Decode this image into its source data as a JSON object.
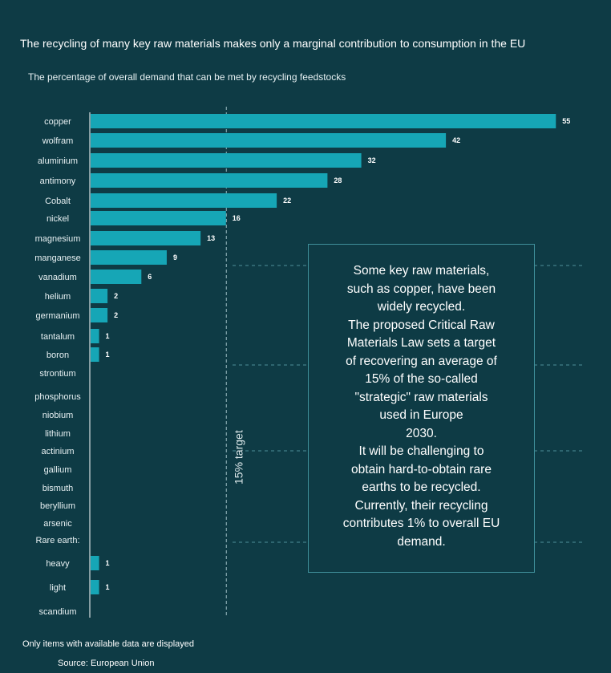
{
  "header": {
    "title": "The recycling of many key raw materials makes only a marginal contribution to consumption in the EU",
    "subtitle": "The percentage of overall demand that can be met by recycling feedstocks"
  },
  "chart_data": {
    "type": "bar",
    "orientation": "horizontal",
    "categories": [
      "copper",
      "wolfram",
      "aluminium",
      "antimony",
      "Cobalt",
      "nickel",
      "magnesium",
      "manganese",
      "vanadium",
      "helium",
      "germanium",
      "tantalum",
      "boron",
      "strontium",
      "phosphorus",
      "niobium",
      "lithium",
      "actinium",
      "gallium",
      "bismuth",
      "beryllium",
      "arsenic",
      "Rare earth:",
      "heavy",
      "light",
      "scandium"
    ],
    "values": [
      55,
      42,
      32,
      28,
      22,
      16,
      13,
      9,
      6,
      2,
      2,
      1,
      1,
      null,
      null,
      null,
      null,
      null,
      null,
      null,
      null,
      null,
      null,
      1,
      1,
      null
    ],
    "value_labels": [
      "55",
      "42",
      "32",
      "28",
      "22",
      "16",
      "13",
      "9",
      "6",
      "2",
      "2",
      "1",
      "1",
      "",
      "",
      "",
      "",
      "",
      "",
      "",
      "",
      "",
      "",
      "1",
      "1",
      ""
    ],
    "reference_line": {
      "value": 15,
      "label": "15% target"
    },
    "bar_color": "#16a6b6",
    "grid": false
  },
  "note": {
    "lines": [
      "Some key raw materials,",
      "such as copper, have been",
      "widely recycled.",
      "The proposed Critical Raw",
      "Materials Law sets a target",
      "of recovering an average of",
      "15% of the so-called",
      "\"strategic\" raw materials",
      "used in Europe",
      "2030.",
      "It will be challenging to",
      "obtain hard-to-obtain rare",
      "earths to be recycled.",
      "Currently, their recycling",
      "contributes 1% to overall EU",
      "demand."
    ]
  },
  "footer": {
    "footnote": "Only items with available data are displayed",
    "source": "Source: European Union"
  }
}
